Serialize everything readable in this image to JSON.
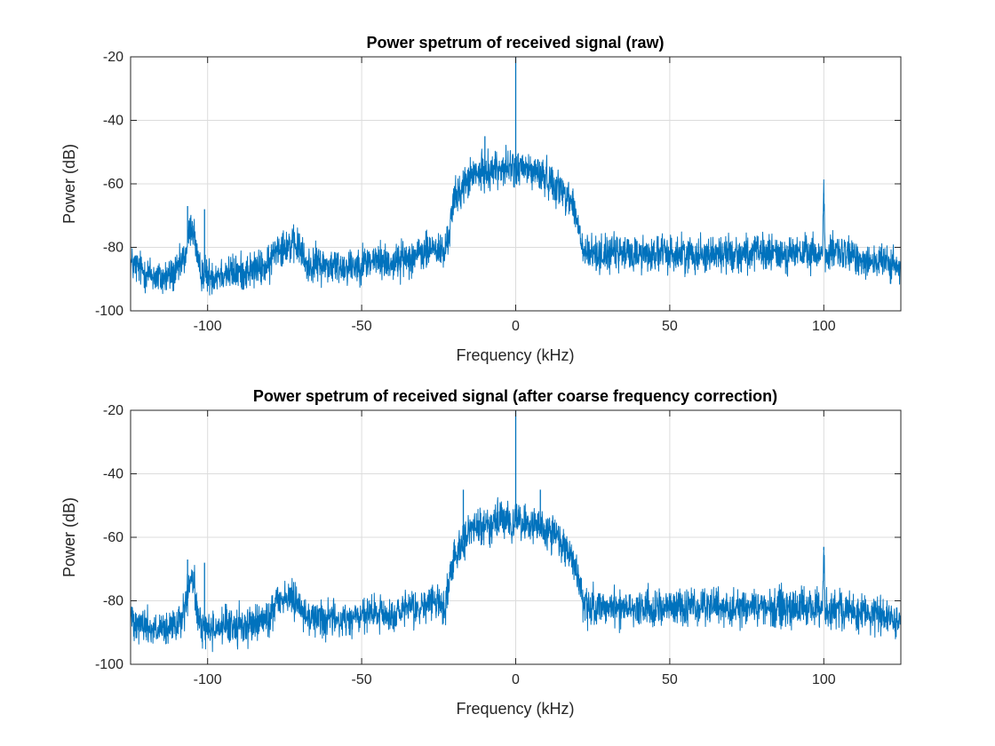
{
  "chart_data": [
    {
      "type": "line",
      "title": "Power spetrum of received signal (raw)",
      "xlabel": "Frequency (kHz)",
      "ylabel": "Power (dB)",
      "xlim": [
        -125,
        125
      ],
      "ylim": [
        -100,
        -20
      ],
      "xticks": [
        -100,
        -50,
        0,
        50,
        100
      ],
      "yticks": [
        -100,
        -80,
        -60,
        -40,
        -20
      ],
      "grid": true,
      "series": [
        {
          "color": "#0072BD",
          "x": [
            -125,
            -120,
            -115,
            -110,
            -107,
            -106,
            -105,
            -104,
            -103,
            -101,
            -100,
            -95,
            -90,
            -85,
            -80,
            -78,
            -75,
            -70,
            -68,
            -65,
            -60,
            -55,
            -50,
            -45,
            -40,
            -35,
            -30,
            -27,
            -25,
            -23,
            -22,
            -20,
            -15,
            -10,
            -5,
            0,
            5,
            10,
            15,
            18,
            20,
            22,
            25,
            30,
            40,
            50,
            60,
            70,
            80,
            90,
            95,
            99.5,
            100,
            100.5,
            105,
            110,
            115,
            120,
            125
          ],
          "y": [
            -85,
            -88,
            -90,
            -88,
            -82,
            -75,
            -73,
            -78,
            -87,
            -88,
            -89,
            -88,
            -88,
            -87,
            -86,
            -80,
            -79,
            -80,
            -86,
            -85,
            -86,
            -86,
            -85,
            -84,
            -85,
            -83,
            -82,
            -80,
            -81,
            -82,
            -77,
            -65,
            -58,
            -56,
            -55,
            -55,
            -56,
            -58,
            -62,
            -65,
            -72,
            -82,
            -82,
            -82,
            -82,
            -82,
            -82,
            -82,
            -82,
            -82,
            -82,
            -82,
            -64,
            -82,
            -82,
            -83,
            -84,
            -85,
            -87
          ],
          "noise_db": 5
        }
      ],
      "spikes": [
        {
          "x": 0,
          "y": -19
        },
        {
          "x": -10,
          "y": -45
        },
        {
          "x": -106.5,
          "y": -67
        },
        {
          "x": -101,
          "y": -68
        },
        {
          "x": 100,
          "y": -63
        }
      ]
    },
    {
      "type": "line",
      "title": "Power spetrum of received signal (after coarse frequency correction)",
      "xlabel": "Frequency (kHz)",
      "ylabel": "Power (dB)",
      "xlim": [
        -125,
        125
      ],
      "ylim": [
        -100,
        -20
      ],
      "xticks": [
        -100,
        -50,
        0,
        50,
        100
      ],
      "yticks": [
        -100,
        -80,
        -60,
        -40,
        -20
      ],
      "grid": true,
      "series": [
        {
          "color": "#0072BD",
          "x": [
            -125,
            -120,
            -115,
            -110,
            -107,
            -106,
            -105,
            -104,
            -103,
            -101,
            -100,
            -95,
            -90,
            -85,
            -80,
            -78,
            -75,
            -70,
            -68,
            -65,
            -60,
            -55,
            -50,
            -45,
            -40,
            -35,
            -30,
            -27,
            -25,
            -23,
            -22,
            -20,
            -15,
            -10,
            -5,
            0,
            5,
            10,
            15,
            18,
            20,
            22,
            25,
            30,
            40,
            50,
            60,
            70,
            80,
            90,
            95,
            99.5,
            100,
            100.5,
            105,
            110,
            115,
            120,
            125
          ],
          "y": [
            -85,
            -88,
            -90,
            -88,
            -82,
            -75,
            -73,
            -78,
            -87,
            -88,
            -89,
            -88,
            -88,
            -87,
            -86,
            -80,
            -79,
            -80,
            -86,
            -85,
            -86,
            -86,
            -85,
            -84,
            -85,
            -83,
            -82,
            -80,
            -81,
            -82,
            -77,
            -65,
            -58,
            -56,
            -55,
            -55,
            -56,
            -58,
            -62,
            -65,
            -72,
            -82,
            -82,
            -82,
            -82,
            -82,
            -82,
            -82,
            -82,
            -82,
            -82,
            -82,
            -64,
            -82,
            -82,
            -83,
            -84,
            -85,
            -87
          ],
          "noise_db": 5
        }
      ],
      "spikes": [
        {
          "x": 0,
          "y": -19
        },
        {
          "x": -17,
          "y": -45
        },
        {
          "x": 8,
          "y": -45
        },
        {
          "x": -106.5,
          "y": -67
        },
        {
          "x": -101,
          "y": -68
        },
        {
          "x": 100,
          "y": -63
        }
      ]
    }
  ]
}
